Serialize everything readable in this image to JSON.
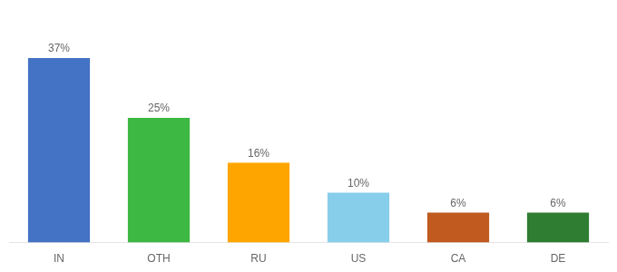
{
  "chart_data": {
    "type": "bar",
    "categories": [
      "IN",
      "OTH",
      "RU",
      "US",
      "CA",
      "DE"
    ],
    "values": [
      37,
      25,
      16,
      10,
      6,
      6
    ],
    "value_labels": [
      "37%",
      "25%",
      "16%",
      "10%",
      "6%",
      "6%"
    ],
    "colors": [
      "#4472C4",
      "#3CB843",
      "#FFA500",
      "#87CEEB",
      "#C05A1F",
      "#2E7D32"
    ],
    "ylim": [
      0,
      45
    ],
    "tick_labels": "x",
    "grid": false,
    "data_labels": true
  }
}
